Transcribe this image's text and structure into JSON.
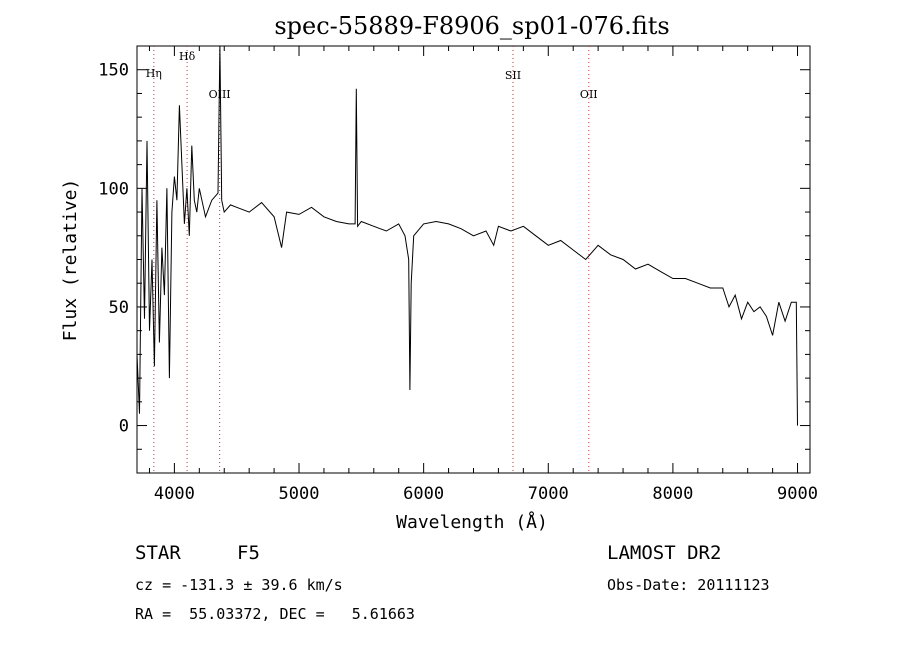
{
  "chart_data": {
    "type": "line",
    "title": "spec-55889-F8906_sp01-076.fits",
    "xlabel": "Wavelength (Å)",
    "ylabel": "Flux (relative)",
    "xlim": [
      3700,
      9100
    ],
    "ylim": [
      -20,
      160
    ],
    "x_ticks": [
      4000,
      5000,
      6000,
      7000,
      8000,
      9000
    ],
    "x_tick_labels": [
      "4000",
      "5000",
      "6000",
      "7000",
      "8000",
      "9000"
    ],
    "y_ticks": [
      0,
      50,
      100,
      150
    ],
    "y_tick_labels": [
      "0",
      "50",
      "100",
      "150"
    ],
    "grid": false,
    "legend": "none",
    "line_color": "#000000",
    "marker_color": "#cc3333",
    "spectral_lines": [
      {
        "label": "Hη",
        "wavelength": 3835,
        "label_y": 147
      },
      {
        "label": "Hδ",
        "wavelength": 4102,
        "label_y": 154
      },
      {
        "label": "OIII",
        "wavelength": 4363,
        "label_y": 138
      },
      {
        "label": "SII",
        "wavelength": 6717,
        "label_y": 146
      },
      {
        "label": "OII",
        "wavelength": 7325,
        "label_y": 138
      }
    ],
    "series": [
      {
        "x": [
          3700,
          3720,
          3740,
          3760,
          3780,
          3800,
          3820,
          3840,
          3860,
          3880,
          3900,
          3920,
          3940,
          3960,
          3980,
          4000,
          4020,
          4040,
          4060,
          4080,
          4100,
          4120,
          4140,
          4160,
          4180,
          4200,
          4250,
          4300,
          4350,
          4365,
          4380,
          4400,
          4450,
          4500,
          4600,
          4700,
          4800,
          4860,
          4900,
          5000,
          5100,
          5200,
          5300,
          5400,
          5450,
          5460,
          5470,
          5500,
          5600,
          5700,
          5800,
          5850,
          5880,
          5890,
          5900,
          5920,
          6000,
          6100,
          6200,
          6300,
          6400,
          6500,
          6562,
          6600,
          6700,
          6800,
          6900,
          7000,
          7100,
          7200,
          7300,
          7400,
          7500,
          7600,
          7700,
          7800,
          7900,
          8000,
          8100,
          8200,
          8300,
          8400,
          8450,
          8500,
          8550,
          8600,
          8650,
          8700,
          8750,
          8800,
          8850,
          8900,
          8950,
          8990,
          9000
        ],
        "y": [
          30,
          5,
          100,
          45,
          120,
          40,
          70,
          25,
          95,
          35,
          75,
          55,
          100,
          20,
          90,
          105,
          95,
          135,
          110,
          85,
          100,
          80,
          118,
          95,
          90,
          100,
          88,
          95,
          98,
          160,
          95,
          90,
          93,
          92,
          90,
          94,
          88,
          75,
          90,
          89,
          92,
          88,
          86,
          85,
          85,
          142,
          84,
          86,
          84,
          82,
          85,
          80,
          70,
          15,
          60,
          80,
          85,
          86,
          85,
          83,
          80,
          82,
          76,
          84,
          82,
          84,
          80,
          76,
          78,
          74,
          70,
          76,
          72,
          70,
          66,
          68,
          65,
          62,
          62,
          60,
          58,
          58,
          50,
          55,
          45,
          52,
          48,
          50,
          46,
          38,
          52,
          44,
          52,
          52,
          0
        ]
      }
    ]
  },
  "info": {
    "object_type": "STAR",
    "subclass": "F5",
    "survey": "LAMOST DR2",
    "cz": "cz = -131.3 ± 39.6 km/s",
    "obs_date": "Obs-Date: 20111123",
    "coords": "RA =  55.03372, DEC =   5.61663"
  }
}
